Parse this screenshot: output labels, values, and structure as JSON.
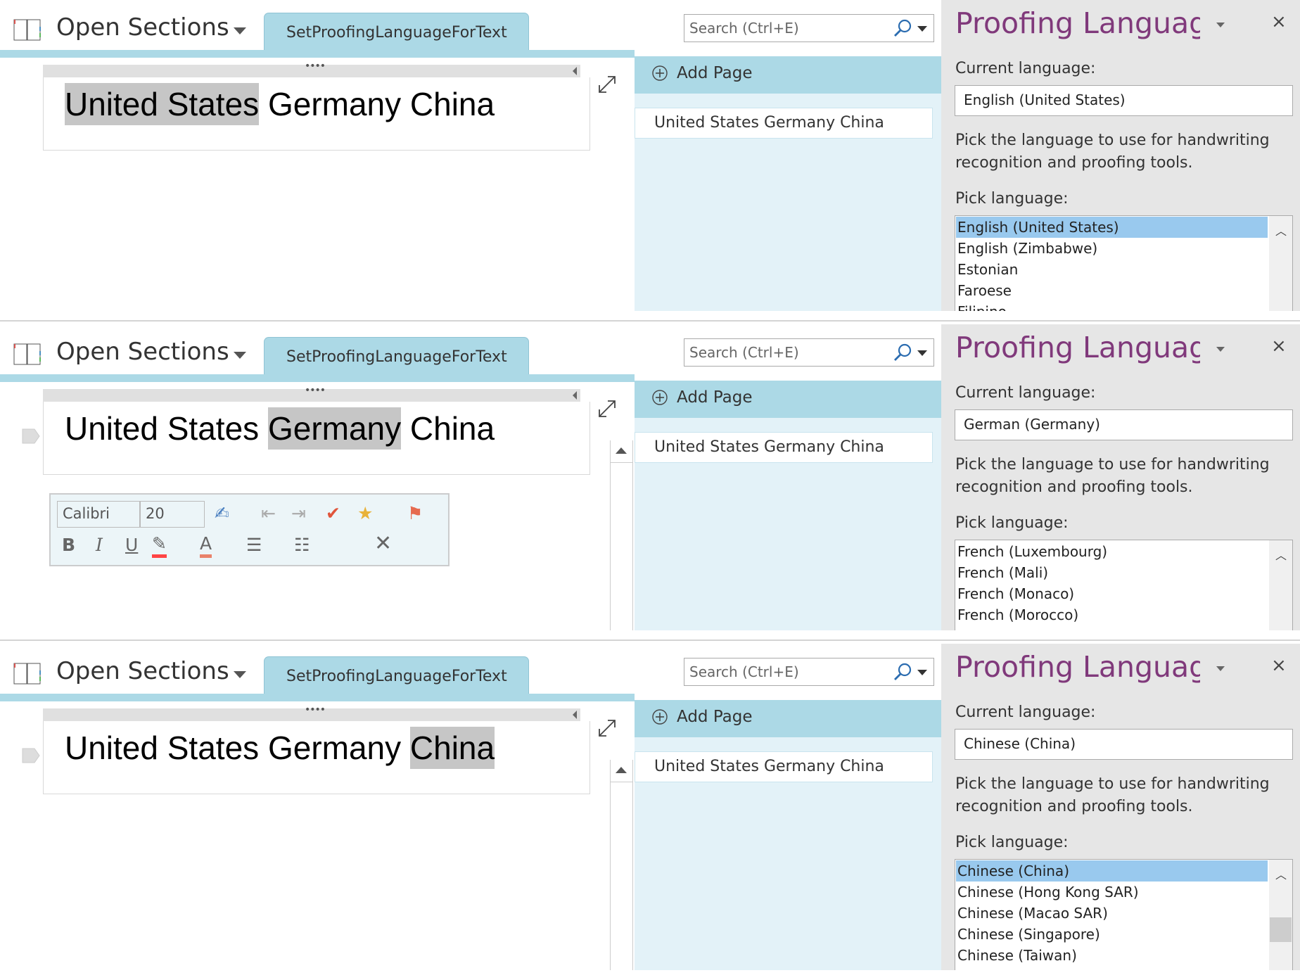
{
  "common": {
    "open_sections": "Open Sections",
    "section_tab": "SetProofingLanguageForText",
    "search_placeholder": "Search (Ctrl+E)",
    "add_page": "Add Page",
    "page_title": "United States Germany China",
    "words": [
      "United States",
      "Germany",
      "China"
    ],
    "pane_title": "Proofing Language",
    "pane_close": "×",
    "current_language_label": "Current language:",
    "help_line1": "Pick the language to use for handwriting",
    "help_line2": "recognition and proofing tools.",
    "pick_language_label": "Pick language:",
    "accent_color": "#80397b",
    "tab_color": "#acd9e6",
    "selection_color": "#99c9ee"
  },
  "panels": [
    {
      "highlighted_word": 0,
      "current_language": "English (United States)",
      "languages": [
        "English (United States)",
        "English (Zimbabwe)",
        "Estonian",
        "Faroese",
        "Filipino"
      ],
      "selected_index": 0,
      "show_mini_toolbar": false
    },
    {
      "highlighted_word": 1,
      "current_language": "German (Germany)",
      "languages": [
        "French (Luxembourg)",
        "French (Mali)",
        "French (Monaco)",
        "French (Morocco)"
      ],
      "selected_index": -1,
      "show_mini_toolbar": true
    },
    {
      "highlighted_word": 2,
      "current_language": "Chinese (China)",
      "languages": [
        "Chinese (China)",
        "Chinese (Hong Kong SAR)",
        "Chinese (Macao SAR)",
        "Chinese (Singapore)",
        "Chinese (Taiwan)"
      ],
      "selected_index": 0,
      "show_mini_toolbar": false
    }
  ],
  "mini_toolbar": {
    "font": "Calibri",
    "size": "20",
    "bold": "B",
    "italic": "I",
    "underline": "U",
    "font_color": "A"
  }
}
